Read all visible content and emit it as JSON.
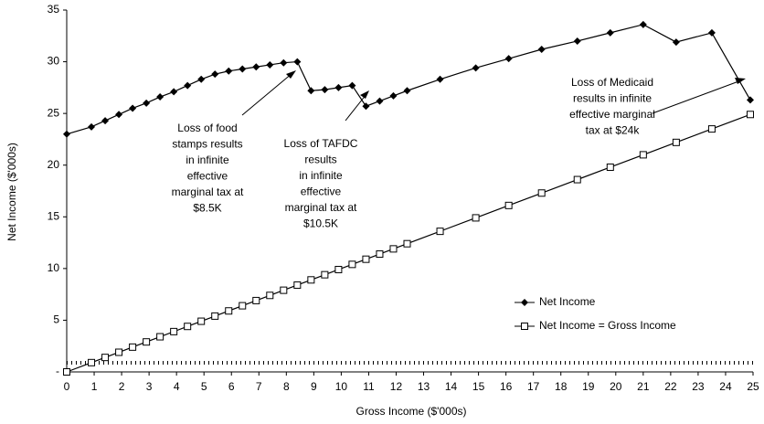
{
  "chart_data": {
    "type": "line",
    "xlabel": "Gross Income ($'000s)",
    "ylabel": "Net Income ($'000s)",
    "xlim": [
      0,
      25
    ],
    "xticks": [
      0,
      1,
      2,
      3,
      4,
      5,
      6,
      7,
      8,
      9,
      10,
      11,
      12,
      13,
      14,
      15,
      16,
      17,
      18,
      19,
      20,
      21,
      22,
      23,
      24,
      25
    ],
    "ylim": [
      0,
      35
    ],
    "yticks": [
      {
        "value": 0,
        "label": "-"
      },
      5,
      10,
      15,
      20,
      25,
      30,
      35
    ],
    "legend": "lower right",
    "series": [
      {
        "name": "Net Income",
        "color": "#000000",
        "marker": "diamond",
        "x": [
          0,
          0.9,
          1.4,
          1.9,
          2.4,
          2.9,
          3.4,
          3.9,
          4.4,
          4.9,
          5.4,
          5.9,
          6.4,
          6.9,
          7.4,
          7.9,
          8.4,
          8.9,
          9.4,
          9.9,
          10.4,
          10.9,
          11.4,
          11.9,
          12.4,
          13.6,
          14.9,
          16.1,
          17.3,
          18.6,
          19.8,
          21.0,
          22.2,
          23.5,
          24.9
        ],
        "values": [
          23.0,
          23.7,
          24.3,
          24.9,
          25.5,
          26.0,
          26.6,
          27.1,
          27.7,
          28.3,
          28.8,
          29.1,
          29.3,
          29.5,
          29.7,
          29.9,
          30.0,
          27.2,
          27.3,
          27.5,
          27.7,
          25.7,
          26.2,
          26.7,
          27.2,
          28.3,
          29.4,
          30.3,
          31.2,
          32.0,
          32.8,
          33.6,
          31.9,
          32.8,
          26.3
        ]
      },
      {
        "name": "Net Income = Gross Income",
        "color": "#000000",
        "marker": "square",
        "x": [
          0,
          0.9,
          1.4,
          1.9,
          2.4,
          2.9,
          3.4,
          3.9,
          4.4,
          4.9,
          5.4,
          5.9,
          6.4,
          6.9,
          7.4,
          7.9,
          8.4,
          8.9,
          9.4,
          9.9,
          10.4,
          10.9,
          11.4,
          11.9,
          12.4,
          13.6,
          14.9,
          16.1,
          17.3,
          18.6,
          19.8,
          21.0,
          22.2,
          23.5,
          24.9
        ],
        "values": [
          0,
          0.9,
          1.4,
          1.9,
          2.4,
          2.9,
          3.4,
          3.9,
          4.4,
          4.9,
          5.4,
          5.9,
          6.4,
          6.9,
          7.4,
          7.9,
          8.4,
          8.9,
          9.4,
          9.9,
          10.4,
          10.9,
          11.4,
          11.9,
          12.4,
          13.6,
          14.9,
          16.1,
          17.3,
          18.6,
          19.8,
          21.0,
          22.2,
          23.5,
          24.9
        ]
      }
    ],
    "annotations": [
      {
        "lines": [
          "Loss of food",
          "stamps results",
          "in infinite",
          "effective",
          "marginal tax at",
          "$8.5K"
        ]
      },
      {
        "lines": [
          "Loss of TAFDC",
          "results",
          "in infinite",
          "effective",
          "marginal tax at",
          "$10.5K"
        ]
      },
      {
        "lines": [
          "Loss of Medicaid",
          "results in infinite",
          "effective marginal",
          "tax at $24k"
        ]
      }
    ]
  }
}
